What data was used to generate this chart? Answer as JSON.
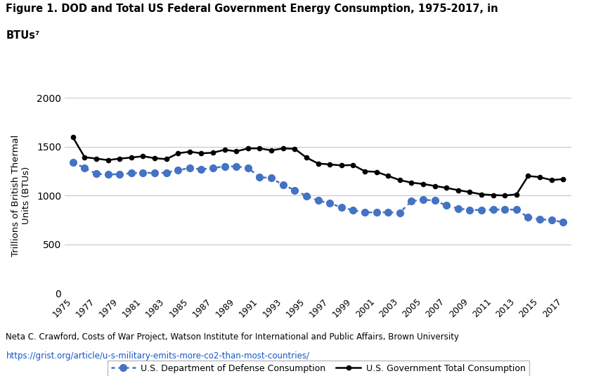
{
  "years": [
    1975,
    1976,
    1977,
    1978,
    1979,
    1980,
    1981,
    1982,
    1983,
    1984,
    1985,
    1986,
    1987,
    1988,
    1989,
    1990,
    1991,
    1992,
    1993,
    1994,
    1995,
    1996,
    1997,
    1998,
    1999,
    2000,
    2001,
    2002,
    2003,
    2004,
    2005,
    2006,
    2007,
    2008,
    2009,
    2010,
    2011,
    2012,
    2013,
    2014,
    2015,
    2016,
    2017
  ],
  "gov_total": [
    1595,
    1392,
    1378,
    1362,
    1378,
    1388,
    1402,
    1382,
    1372,
    1432,
    1448,
    1432,
    1438,
    1468,
    1452,
    1482,
    1482,
    1462,
    1482,
    1478,
    1388,
    1328,
    1318,
    1308,
    1312,
    1248,
    1242,
    1200,
    1158,
    1132,
    1118,
    1098,
    1078,
    1055,
    1035,
    1012,
    1005,
    1000,
    1012,
    1200,
    1188,
    1158,
    1168
  ],
  "dod": [
    1340,
    1282,
    1222,
    1215,
    1218,
    1228,
    1235,
    1228,
    1235,
    1258,
    1282,
    1268,
    1282,
    1298,
    1298,
    1282,
    1188,
    1178,
    1108,
    1055,
    995,
    950,
    920,
    880,
    850,
    828,
    828,
    828,
    825,
    942,
    958,
    948,
    898,
    868,
    852,
    852,
    855,
    858,
    855,
    778,
    758,
    748,
    728
  ],
  "title_line1": "Figure 1. DOD and Total US Federal Government Energy Consumption, 1975-2017, in",
  "title_line2": "BTUs⁷",
  "ylabel": "Trillions of British Thermal\nUnits (BTUs)",
  "dod_label": "U.S. Department of Defense Consumption",
  "gov_label": "U.S. Government Total Consumption",
  "footnote": "Neta C. Crawford, Costs of War Project, Watson Institute for International and Public Affairs, Brown University",
  "url": "https://grist.org/article/u-s-military-emits-more-co2-than-most-countries/",
  "dod_color": "#4472C4",
  "gov_color": "#000000",
  "bg_color": "#ffffff",
  "grid_color": "#c8c8c8",
  "ylim": [
    0,
    2000
  ],
  "yticks": [
    0,
    500,
    1000,
    1500,
    2000
  ],
  "xtick_years": [
    1975,
    1977,
    1979,
    1981,
    1983,
    1985,
    1987,
    1989,
    1991,
    1993,
    1995,
    1997,
    1999,
    2001,
    2003,
    2005,
    2007,
    2009,
    2011,
    2013,
    2015,
    2017
  ]
}
